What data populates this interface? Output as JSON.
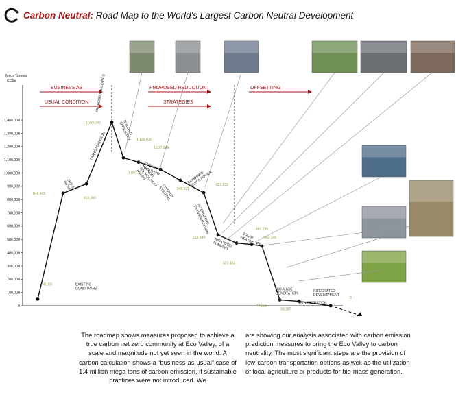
{
  "header": {
    "title_accent": "Carbon Neutral:",
    "title_rest": "Road Map to the World's Largest Carbon Neutral Development"
  },
  "colors": {
    "accent": "#a01818",
    "label_green": "#8aa14a",
    "line": "#111111",
    "connector": "#9a9a9a",
    "axis": "#444444"
  },
  "icons": {
    "logo": "swoosh-logo-icon",
    "timeline": "arrow-right-icon"
  },
  "chart_data": {
    "type": "line",
    "ylabel": "Mega Tonnes CO2e",
    "ylim": [
      0,
      1400000
    ],
    "yticks": [
      {
        "v": 1400000,
        "label": "1,400,000"
      },
      {
        "v": 1300000,
        "label": "1,300,000"
      },
      {
        "v": 1200000,
        "label": "1,200,000"
      },
      {
        "v": 1100000,
        "label": "1,100,000"
      },
      {
        "v": 1000000,
        "label": "1,000,000"
      },
      {
        "v": 900000,
        "label": "900,000"
      },
      {
        "v": 800000,
        "label": "800,000"
      },
      {
        "v": 700000,
        "label": "700,000"
      },
      {
        "v": 600000,
        "label": "600,000"
      },
      {
        "v": 500000,
        "label": "500,000"
      },
      {
        "v": 400000,
        "label": "400,000"
      },
      {
        "v": 300000,
        "label": "300,000"
      },
      {
        "v": 200000,
        "label": "200,000"
      },
      {
        "v": 100000,
        "label": "100,000"
      },
      {
        "v": 0,
        "label": "0"
      }
    ],
    "phases": [
      {
        "line1": "BUSINESS AS",
        "line2": "USUAL CONDITION"
      },
      {
        "line1": "PROPOSED REDUCTION",
        "line2": "STRATEGIES"
      },
      {
        "line1": "OFFSETTING",
        "line2": ""
      }
    ],
    "points": [
      {
        "step": 0,
        "value": 50000,
        "value_label": "50,000",
        "label": "EXISTING|CONDITIONS"
      },
      {
        "step": 1,
        "value": 848492,
        "value_label": "848,492",
        "label": "SITE &|INFRA"
      },
      {
        "step": 2,
        "value": 918360,
        "value_label": "918,360",
        "label": "TRANSPORTATION"
      },
      {
        "step": 3,
        "value": 1383351,
        "value_label": "1,383,351",
        "label": "PROPOSED BUILDINGS"
      },
      {
        "step": 4,
        "value": 1115408,
        "value_label": "1,115,408",
        "label": "BUILDING|EFFICIENCY"
      },
      {
        "step": 5,
        "value": 1081946,
        "value_label": "1,081,946",
        "label": "GROUND|SOURCE HEAT|PUMPS"
      },
      {
        "step": 6,
        "value": 1027849,
        "value_label": "1,027,849",
        "label": "ENERGY|RECOVERY"
      },
      {
        "step": 7,
        "value": 945621,
        "value_label": "945,621",
        "label": "DISTRICT|SYSTEMS"
      },
      {
        "step": 8,
        "value": 851839,
        "value_label": "851,839",
        "label": "COMBINED|HEAT & POWER"
      },
      {
        "step": 9,
        "value": 533544,
        "value_label": "533,544",
        "label": "ALTERNATIVE|TRANSPORTATION"
      },
      {
        "step": 10,
        "value": 472453,
        "value_label": "472,453",
        "label": "BIO-DIESEL|PUMPING"
      },
      {
        "step": 11,
        "value": 461299,
        "value_label": "461,299",
        "label": "SOLAR|HEATING"
      },
      {
        "step": 12,
        "value": 450145,
        "value_label": "450,145",
        "label": "PV"
      },
      {
        "step": 13,
        "value": 44225,
        "value_label": "44,225",
        "label": "BIO-MASS|GENERATION"
      },
      {
        "step": 14,
        "value": 33167,
        "value_label": "33,167",
        "label": "SEQUESTRATION"
      },
      {
        "step": 15,
        "value": 0,
        "value_label": "0",
        "label": "INTEGRATED|DEVELOPMENT"
      }
    ]
  },
  "photos": [
    {
      "name": "building-photo",
      "subject": "office buildings"
    },
    {
      "name": "turbines-photo",
      "subject": "wind turbines"
    },
    {
      "name": "district-plant-photo",
      "subject": "district energy plant"
    },
    {
      "name": "rail-photo",
      "subject": "rail line"
    },
    {
      "name": "train-photo",
      "subject": "train platform"
    },
    {
      "name": "street-photo",
      "subject": "street scene"
    },
    {
      "name": "solar-dish-photo",
      "subject": "solar dishes"
    },
    {
      "name": "biomass-silo-photo",
      "subject": "biomass silos"
    },
    {
      "name": "dome-plant-photo",
      "subject": "dome plant"
    },
    {
      "name": "greenhouse-photo",
      "subject": "greenhouse"
    }
  ],
  "description": {
    "left": "The roadmap shows measures proposed to achieve a true carbon net zero community at Eco Valley, of a scale and magnitude not yet seen in the world. A carbon calculation shows a “business-as-usual” case of 1.4 million mega tons of carbon emission, if sustainable practices were not introduced. We",
    "right": "are showing our analysis associated with carbon emission prediction measures to bring the Eco Valley to carbon neutrality. The most significant steps are the provision of low-carbon transportation options as well as the utilization of local agriculture bi-products for bio-mass generation."
  }
}
